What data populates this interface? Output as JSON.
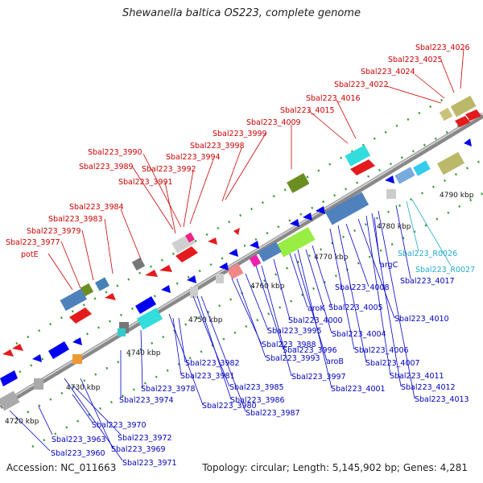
{
  "title": "Shewanella baltica OS223, complete genome",
  "footer": {
    "accession": "Accession: NC_011663",
    "summary": "Topology: circular; Length: 5,145,902 bp; Genes: 4,281"
  },
  "colors": {
    "red_labels": "#cc0000",
    "blue_labels": "#0000bb",
    "cyan_labels": "#22aacc",
    "backbone": "#999999"
  },
  "kbp_ticks": [
    "4720 kbp",
    "4730 kbp",
    "4740 kbp",
    "4750 kbp",
    "4760 kbp",
    "4770 kbp",
    "4780 kbp",
    "4790 kbp"
  ],
  "labels_top": [
    "potE",
    "Sbal223_3977",
    "Sbal223_3979",
    "Sbal223_3983",
    "Sbal223_3984",
    "Sbal223_3991",
    "Sbal223_3989",
    "Sbal223_3990",
    "Sbal223_3992",
    "Sbal223_3994",
    "Sbal223_3998",
    "Sbal223_3999",
    "Sbal223_4009",
    "Sbal223_4015",
    "Sbal223_4016",
    "Sbal223_4022",
    "Sbal223_4024",
    "Sbal223_4025",
    "Sbal223_4026"
  ],
  "labels_bottom": [
    "Sbal223_3963",
    "Sbal223_3960",
    "Sbal223_3970",
    "Sbal223_3972",
    "Sbal223_3969",
    "Sbal223_3971",
    "Sbal223_3974",
    "Sbal223_3978",
    "Sbal223_3980",
    "Sbal223_3981",
    "Sbal223_3982",
    "Sbal223_3985",
    "Sbal223_3986",
    "Sbal223_3987",
    "Sbal223_3988",
    "Sbal223_3993",
    "Sbal223_3995",
    "Sbal223_3996",
    "Sbal223_3997",
    "Sbal223_4000",
    "aroK",
    "aroB",
    "Sbal223_4001",
    "Sbal223_4004",
    "Sbal223_4005",
    "Sbal223_4006",
    "Sbal223_4007",
    "Sbal223_4008",
    "Sbal223_4010",
    "Sbal223_4011",
    "Sbal223_4012",
    "Sbal223_4013",
    "argC",
    "Sbal223_4017"
  ],
  "labels_cyan": [
    "Sbal223_R0026",
    "Sbal223_R0027"
  ]
}
